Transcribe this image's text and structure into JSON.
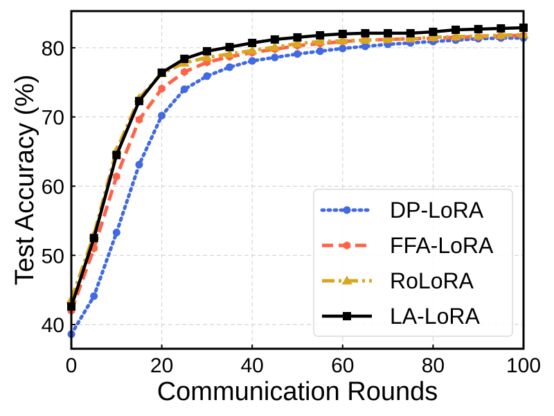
{
  "chart_data": {
    "type": "line",
    "title": "",
    "xlabel": "Communication Rounds",
    "ylabel": "Test Accuracy (%)",
    "xlim": [
      0,
      100
    ],
    "ylim": [
      36.5,
      85.3
    ],
    "xticks": [
      0,
      20,
      40,
      60,
      80,
      100
    ],
    "yticks": [
      40,
      50,
      60,
      70,
      80
    ],
    "grid": true,
    "legend_position": "lower-right",
    "x": [
      0,
      5,
      10,
      15,
      20,
      25,
      30,
      35,
      40,
      45,
      50,
      55,
      60,
      65,
      70,
      75,
      80,
      85,
      90,
      95,
      100
    ],
    "series": [
      {
        "name": "DP-LoRA",
        "color": "#4169E1",
        "line_style": "dotted",
        "marker": "circle",
        "values": [
          38.6,
          44.1,
          53.3,
          63.1,
          70.2,
          74.0,
          75.9,
          77.2,
          78.1,
          78.6,
          79.1,
          79.5,
          79.9,
          80.2,
          80.5,
          80.7,
          80.9,
          81.1,
          81.3,
          81.4,
          81.4
        ]
      },
      {
        "name": "FFA-LoRA",
        "color": "#FF6347",
        "line_style": "dashed",
        "marker": "hexagon",
        "values": [
          42.0,
          51.0,
          61.4,
          69.6,
          74.1,
          76.5,
          77.9,
          78.7,
          79.3,
          79.8,
          80.3,
          80.6,
          80.9,
          81.1,
          81.2,
          81.3,
          81.4,
          81.5,
          81.6,
          81.7,
          81.8
        ]
      },
      {
        "name": "RoLoRA",
        "color": "#DAA520",
        "line_style": "dashdot",
        "marker": "triangle",
        "values": [
          43.6,
          53.0,
          65.2,
          72.7,
          76.3,
          77.8,
          78.6,
          79.1,
          79.6,
          80.1,
          80.6,
          80.9,
          81.0,
          81.1,
          81.2,
          81.3,
          81.5,
          81.6,
          81.7,
          81.8,
          81.9
        ]
      },
      {
        "name": "LA-LoRA",
        "color": "#000000",
        "line_style": "solid",
        "marker": "square",
        "values": [
          42.6,
          52.5,
          64.5,
          72.3,
          76.4,
          78.4,
          79.5,
          80.1,
          80.7,
          81.2,
          81.5,
          81.8,
          82.0,
          82.1,
          82.1,
          82.1,
          82.3,
          82.6,
          82.7,
          82.8,
          82.9
        ]
      }
    ]
  }
}
